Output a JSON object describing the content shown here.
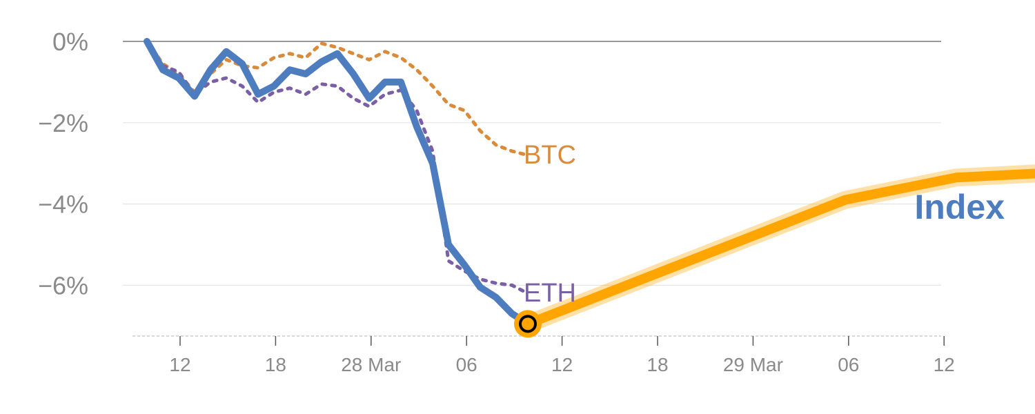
{
  "chart_data": {
    "type": "line",
    "title": "",
    "xlabel": "",
    "ylabel": "",
    "ylim": [
      -7.2,
      0
    ],
    "y_ticks": [
      {
        "value": 0,
        "label": "0%"
      },
      {
        "value": -2,
        "label": "−2%"
      },
      {
        "value": -4,
        "label": "−4%"
      },
      {
        "value": -6,
        "label": "−6%"
      }
    ],
    "x_ticks": [
      "12",
      "18",
      "28 Mar",
      "06",
      "12",
      "18",
      "29 Mar",
      "06",
      "12"
    ],
    "series": [
      {
        "name": "Index",
        "color": "#4e7dbf",
        "style": "solid",
        "values": [
          0.0,
          -0.7,
          -0.9,
          -1.35,
          -0.7,
          -0.25,
          -0.55,
          -1.3,
          -1.1,
          -0.7,
          -0.8,
          -0.5,
          -0.3,
          -0.8,
          -1.4,
          -1.0,
          -1.0,
          -2.1,
          -3.0,
          -5.0,
          -5.5,
          -6.05,
          -6.3,
          -6.7,
          -6.95
        ]
      },
      {
        "name": "BTC",
        "color": "#d98b3a",
        "style": "dotted",
        "values": [
          0.0,
          -0.55,
          -0.8,
          -1.25,
          -0.8,
          -0.45,
          -0.6,
          -0.65,
          -0.4,
          -0.3,
          -0.4,
          -0.05,
          -0.15,
          -0.3,
          -0.45,
          -0.25,
          -0.4,
          -0.7,
          -1.1,
          -1.55,
          -1.7,
          -2.2,
          -2.55,
          -2.7,
          -2.8
        ]
      },
      {
        "name": "ETH",
        "color": "#7b5fa6",
        "style": "dotted",
        "values": [
          0.0,
          -0.6,
          -0.75,
          -1.3,
          -1.0,
          -0.9,
          -1.1,
          -1.5,
          -1.25,
          -1.15,
          -1.3,
          -1.05,
          -1.1,
          -1.4,
          -1.6,
          -1.3,
          -1.2,
          -1.7,
          -2.7,
          -5.4,
          -5.65,
          -5.85,
          -5.95,
          -6.0,
          -6.2
        ]
      },
      {
        "name": "Index",
        "color": "#ffa500",
        "style": "forecast",
        "x_index": [
          24,
          44,
          51,
          56
        ],
        "values": [
          -6.95,
          -3.9,
          -3.35,
          -3.25
        ]
      }
    ],
    "highlight_point": {
      "x_index": 24,
      "value": -6.95
    },
    "legend": "inline-end-labels",
    "grid": true
  }
}
